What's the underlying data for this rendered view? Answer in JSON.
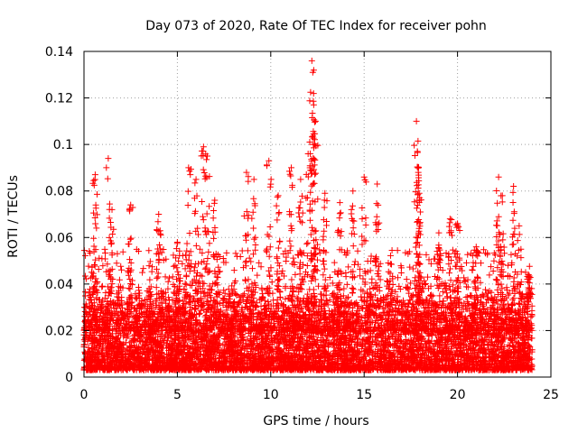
{
  "chart_data": {
    "type": "scatter",
    "title": "Day 073 of 2020, Rate Of TEC Index for receiver pohn",
    "xlabel": "GPS time / hours",
    "ylabel": "ROTI / TECUs",
    "xlim": [
      0,
      25
    ],
    "ylim": [
      0,
      0.14
    ],
    "xticks": [
      0,
      5,
      10,
      15,
      20,
      25
    ],
    "xtick_labels": [
      "0",
      "5",
      "10",
      "15",
      "20",
      "25"
    ],
    "yticks": [
      0,
      0.02,
      0.04,
      0.06,
      0.08,
      0.1,
      0.12,
      0.14
    ],
    "ytick_labels": [
      "0",
      "0.02",
      "0.04",
      "0.06",
      "0.08",
      "0.1",
      "0.12",
      "0.14"
    ],
    "grid": true,
    "marker": "+",
    "color": "#ff0000",
    "x_data_range": [
      0,
      24
    ],
    "bulk_y_range": [
      0.003,
      0.035
    ],
    "representative_peaks": [
      {
        "x": 0.6,
        "y": 0.087
      },
      {
        "x": 1.3,
        "y": 0.094
      },
      {
        "x": 1.5,
        "y": 0.072
      },
      {
        "x": 2.5,
        "y": 0.074
      },
      {
        "x": 4.0,
        "y": 0.07
      },
      {
        "x": 5.0,
        "y": 0.058
      },
      {
        "x": 5.6,
        "y": 0.09
      },
      {
        "x": 6.0,
        "y": 0.085
      },
      {
        "x": 6.4,
        "y": 0.099
      },
      {
        "x": 6.6,
        "y": 0.095
      },
      {
        "x": 7.0,
        "y": 0.076
      },
      {
        "x": 8.7,
        "y": 0.088
      },
      {
        "x": 9.1,
        "y": 0.085
      },
      {
        "x": 9.9,
        "y": 0.093
      },
      {
        "x": 10.4,
        "y": 0.078
      },
      {
        "x": 11.1,
        "y": 0.09
      },
      {
        "x": 11.6,
        "y": 0.085
      },
      {
        "x": 12.0,
        "y": 0.096
      },
      {
        "x": 12.2,
        "y": 0.136
      },
      {
        "x": 12.25,
        "y": 0.131
      },
      {
        "x": 12.3,
        "y": 0.117
      },
      {
        "x": 12.4,
        "y": 0.11
      },
      {
        "x": 12.9,
        "y": 0.079
      },
      {
        "x": 13.7,
        "y": 0.075
      },
      {
        "x": 14.4,
        "y": 0.08
      },
      {
        "x": 15.0,
        "y": 0.086
      },
      {
        "x": 15.7,
        "y": 0.083
      },
      {
        "x": 17.8,
        "y": 0.11
      },
      {
        "x": 17.85,
        "y": 0.097
      },
      {
        "x": 17.9,
        "y": 0.088
      },
      {
        "x": 17.95,
        "y": 0.079
      },
      {
        "x": 19.0,
        "y": 0.062
      },
      {
        "x": 19.6,
        "y": 0.068
      },
      {
        "x": 20.0,
        "y": 0.066
      },
      {
        "x": 21.0,
        "y": 0.056
      },
      {
        "x": 22.2,
        "y": 0.086
      },
      {
        "x": 22.4,
        "y": 0.078
      },
      {
        "x": 23.0,
        "y": 0.082
      },
      {
        "x": 23.3,
        "y": 0.065
      },
      {
        "x": 23.8,
        "y": 0.044
      }
    ]
  }
}
